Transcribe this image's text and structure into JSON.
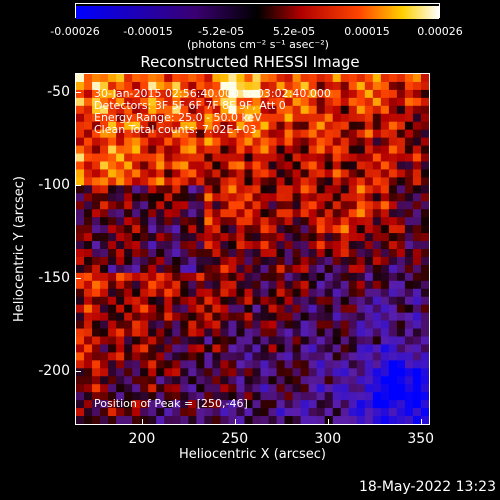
{
  "colorbar": {
    "ticks": [
      "-0.00026",
      "-0.00015",
      "-5.2e-05",
      "5.2e-05",
      "0.00015",
      "0.00026"
    ],
    "unit_label": "(photons cm⁻² s⁻¹ asec⁻²)",
    "min": -0.00026,
    "max": 0.00026
  },
  "annotations": {
    "time_range": "30-Jan-2015 02:56:40.000 to 03:02:40.000",
    "detectors": "Detectors: 3F 5F 6F 7F 8F 9F, Att 0",
    "energy": "Energy Range: 25.0 - 50.0 keV",
    "clean": "Clean    Total counts: 7.02E+03",
    "peak": "Position of Peak = [250,-46]"
  },
  "footer": {
    "date": "18-May-2022 13:23"
  },
  "chart_data": {
    "type": "heatmap",
    "title": "Reconstructed RHESSI Image",
    "xlabel": "Heliocentric X (arcsec)",
    "ylabel": "Heliocentric Y (arcsec)",
    "xlim": [
      164,
      355
    ],
    "ylim": [
      -229,
      -40
    ],
    "xticks": [
      200,
      250,
      300,
      350
    ],
    "yticks": [
      -50,
      -100,
      -150,
      -200
    ],
    "colormap": "red-temperature",
    "peak": [
      250,
      -46
    ]
  }
}
